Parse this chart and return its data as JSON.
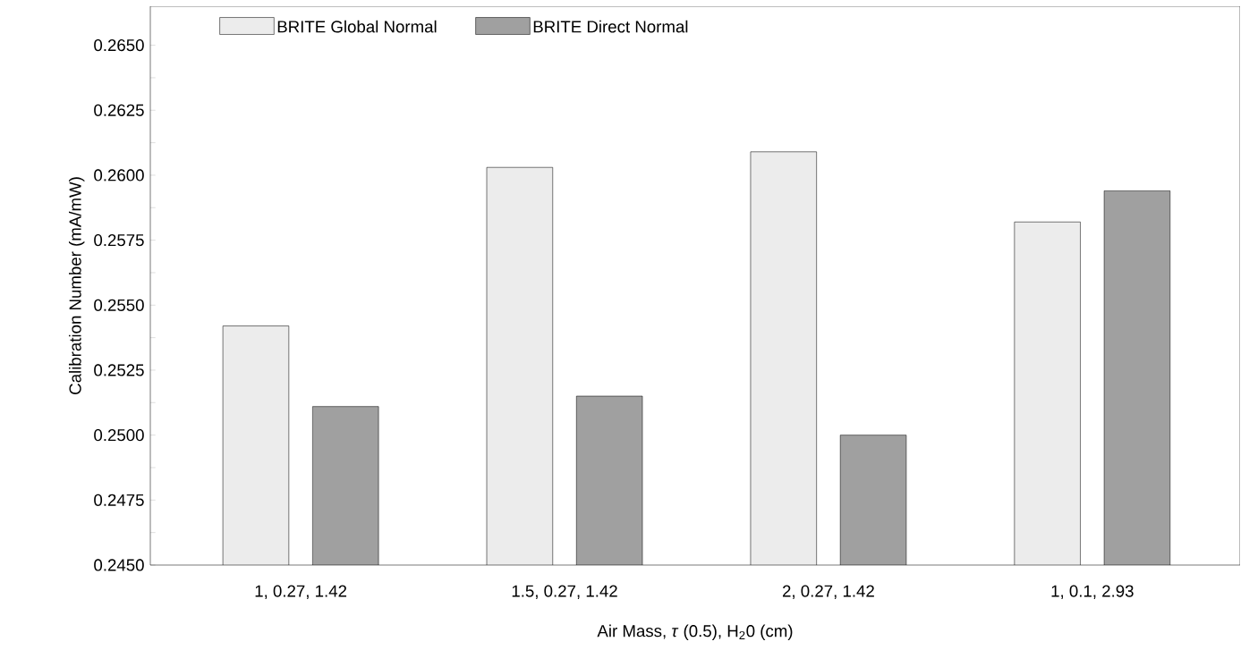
{
  "chart_data": {
    "type": "bar",
    "categories": [
      "1, 0.27, 1.42",
      "1.5, 0.27, 1.42",
      "2, 0.27, 1.42",
      "1, 0.1, 2.93"
    ],
    "series": [
      {
        "name": "BRITE Global Normal",
        "color": "#ececec",
        "values": [
          0.2542,
          0.2603,
          0.2609,
          0.2582
        ]
      },
      {
        "name": "BRITE Direct Normal",
        "color": "#a0a0a0",
        "values": [
          0.2511,
          0.2515,
          0.25,
          0.2594
        ]
      }
    ],
    "xlabel": "Air Mass, *τ* (0.5), H$_{2}$0 (cm)",
    "ylabel": "Calibration Number (mA/mW)",
    "ylim": [
      0.245,
      0.2665
    ],
    "yticks": [
      {
        "value": 0.245,
        "label": "0.2450"
      },
      {
        "value": 0.24625,
        "label": null
      },
      {
        "value": 0.2475,
        "label": "0.2475"
      },
      {
        "value": 0.24875,
        "label": null
      },
      {
        "value": 0.25,
        "label": "0.2500"
      },
      {
        "value": 0.25125,
        "label": null
      },
      {
        "value": 0.2525,
        "label": "0.2525"
      },
      {
        "value": 0.25375,
        "label": null
      },
      {
        "value": 0.255,
        "label": "0.2550"
      },
      {
        "value": 0.25625,
        "label": null
      },
      {
        "value": 0.2575,
        "label": "0.2575"
      },
      {
        "value": 0.25875,
        "label": null
      },
      {
        "value": 0.26,
        "label": "0.2600"
      },
      {
        "value": 0.26125,
        "label": null
      },
      {
        "value": 0.2625,
        "label": "0.2625"
      },
      {
        "value": 0.26375,
        "label": null
      },
      {
        "value": 0.265,
        "label": "0.2650"
      }
    ],
    "grid": false,
    "legend": "top left"
  }
}
